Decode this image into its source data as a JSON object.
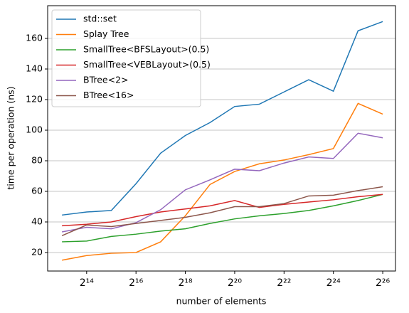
{
  "chart_data": {
    "type": "line",
    "xlabel": "number of elements",
    "ylabel": "time per operation (ns)",
    "x": [
      8192,
      16384,
      32768,
      65536,
      131072,
      262144,
      524288,
      1048576,
      2097152,
      4194304,
      8388608,
      16777216,
      33554432,
      67108864
    ],
    "xscale": "log2",
    "xlim": [
      5480,
      96000000
    ],
    "xticks": [
      {
        "value": 16384,
        "label": "2¹⁴"
      },
      {
        "value": 65536,
        "label": "2¹⁶"
      },
      {
        "value": 262144,
        "label": "2¹⁸"
      },
      {
        "value": 1048576,
        "label": "2²⁰"
      },
      {
        "value": 4194304,
        "label": "2²²"
      },
      {
        "value": 16777216,
        "label": "2²⁴"
      },
      {
        "value": 67108864,
        "label": "2²⁶"
      }
    ],
    "ylim": [
      7.9,
      181.4
    ],
    "yticks": [
      20,
      40,
      60,
      80,
      100,
      120,
      140,
      160
    ],
    "grid": "y",
    "legend": "upper-left",
    "series": [
      {
        "name": "std::set",
        "color": "#1f77b4",
        "values": [
          44.5,
          46.5,
          47.5,
          65,
          85,
          96.5,
          105,
          115.5,
          117,
          125,
          133,
          125.5,
          165,
          171
        ]
      },
      {
        "name": "Splay Tree",
        "color": "#ff7f0e",
        "values": [
          15,
          18,
          19.5,
          20,
          27,
          44,
          64.5,
          73,
          78,
          80.5,
          84,
          88,
          117.5,
          110.5
        ]
      },
      {
        "name": "SmallTree<BFSLayout>(0.5)",
        "color": "#2ca02c",
        "values": [
          27,
          27.5,
          30.5,
          32,
          34,
          35.5,
          39,
          42,
          44,
          45.5,
          47.5,
          50.5,
          54,
          58
        ]
      },
      {
        "name": "SmallTree<VEBLayout>(0.5)",
        "color": "#d62728",
        "values": [
          37.5,
          38.5,
          40,
          43.5,
          46.5,
          48.5,
          50.5,
          54,
          49.5,
          51.5,
          53,
          54.5,
          56.5,
          58
        ]
      },
      {
        "name": "BTree<2>",
        "color": "#9467bd",
        "values": [
          33.5,
          36.5,
          35.5,
          39.5,
          48,
          61,
          67.5,
          74.5,
          73.5,
          78.5,
          82.5,
          81.5,
          98,
          95
        ]
      },
      {
        "name": "BTree<16>",
        "color": "#8c564b",
        "values": [
          31,
          38,
          37,
          39,
          41,
          43,
          46,
          50,
          50,
          52,
          57,
          57.5,
          60.5,
          63
        ]
      }
    ]
  }
}
